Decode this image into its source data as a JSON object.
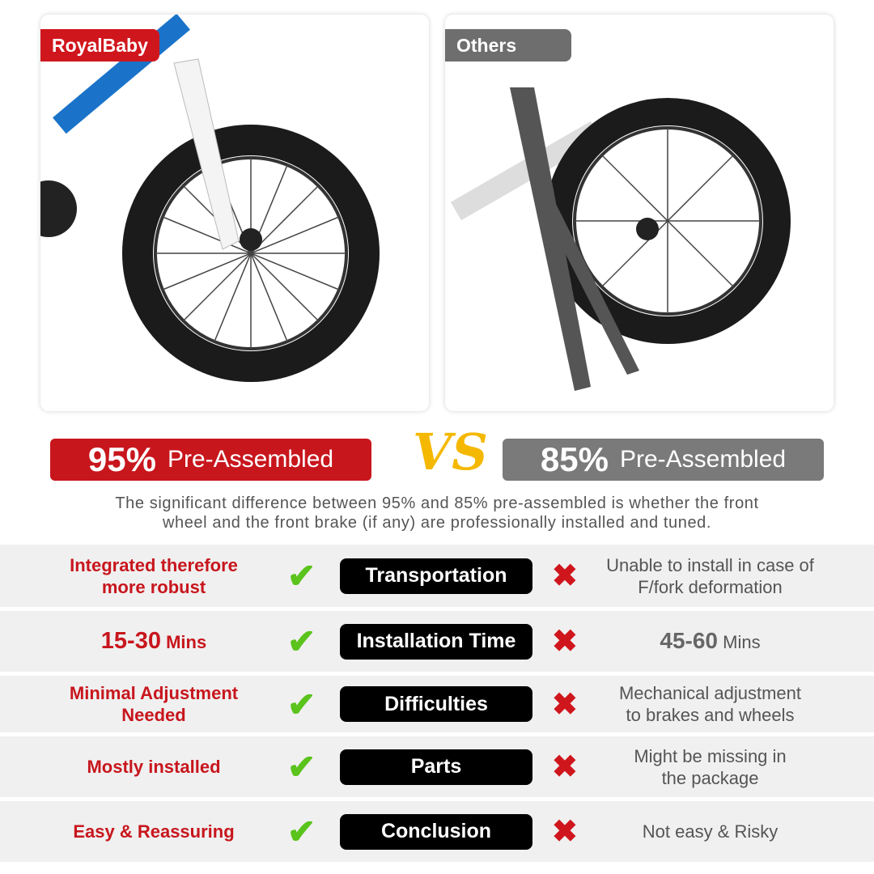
{
  "left": {
    "brand": "RoyalBaby",
    "percent": "95%",
    "label": "Pre-Assembled",
    "color": "#c8161d"
  },
  "right": {
    "brand": "Others",
    "percent": "85%",
    "label": "Pre-Assembled",
    "color": "#7a7a7a"
  },
  "vs": "VS",
  "description": [
    "The significant difference between 95% and 85% pre-assembled is whether the front",
    "wheel and the front brake (if any) are professionally installed and tuned."
  ],
  "rows": [
    {
      "left": [
        "Integrated therefore",
        "more robust"
      ],
      "label": "Transportation",
      "right": [
        "Unable to install in case of",
        "F/fork deformation"
      ]
    },
    {
      "left_num": "15-30",
      "left_unit": "Mins",
      "label": "Installation Time",
      "right_num": "45-60",
      "right_unit": "Mins"
    },
    {
      "left": [
        "Minimal Adjustment",
        "Needed"
      ],
      "label": "Difficulties",
      "right": [
        "Mechanical adjustment",
        "to brakes and wheels"
      ]
    },
    {
      "left": [
        "Mostly installed"
      ],
      "label": "Parts",
      "right": [
        "Might be missing in",
        "the package"
      ]
    },
    {
      "left": [
        "Easy & Reassuring"
      ],
      "label": "Conclusion",
      "right": [
        "Not easy & Risky"
      ]
    }
  ],
  "icons": {
    "pro": "check-icon",
    "con": "cross-icon"
  }
}
